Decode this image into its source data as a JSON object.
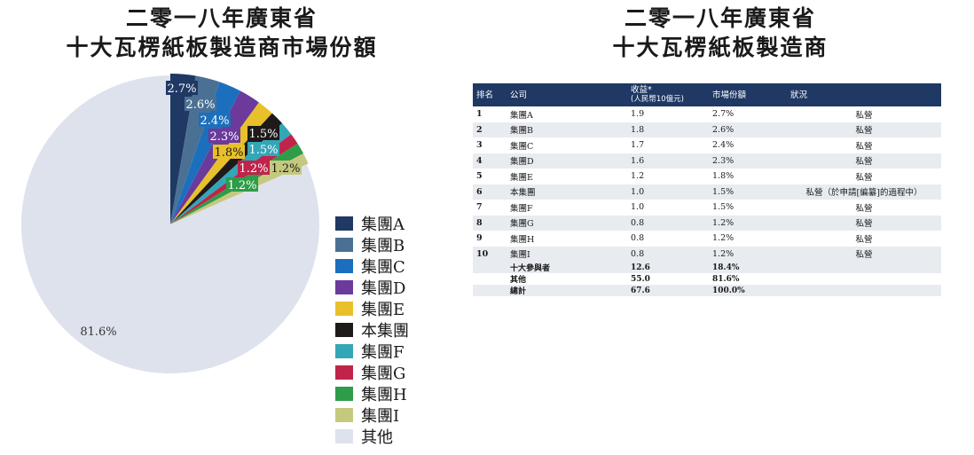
{
  "left_title": {
    "line1": "二零一八年廣東省",
    "line2": "十大瓦楞紙板製造商市場份額"
  },
  "right_title": {
    "line1": "二零一八年廣東省",
    "line2": "十大瓦楞紙板製造商"
  },
  "chart_data": [
    {
      "type": "pie",
      "title": "二零一八年廣東省十大瓦楞紙板製造商市場份額",
      "legend_position": "right",
      "slices": [
        {
          "label": "集團A",
          "value": 2.7,
          "value_label": "2.7%",
          "color": "#1f3864"
        },
        {
          "label": "集團B",
          "value": 2.6,
          "value_label": "2.6%",
          "color": "#4a7193"
        },
        {
          "label": "集團C",
          "value": 2.4,
          "value_label": "2.4%",
          "color": "#1c6fbc"
        },
        {
          "label": "集團D",
          "value": 2.3,
          "value_label": "2.3%",
          "color": "#6b3a9a"
        },
        {
          "label": "集團E",
          "value": 1.8,
          "value_label": "1.8%",
          "color": "#e8c02a"
        },
        {
          "label": "本集團",
          "value": 1.5,
          "value_label": "1.5%",
          "color": "#1e1a1a"
        },
        {
          "label": "集團F",
          "value": 1.5,
          "value_label": "1.5%",
          "color": "#33a6b8"
        },
        {
          "label": "集團G",
          "value": 1.2,
          "value_label": "1.2%",
          "color": "#c0244a"
        },
        {
          "label": "集團H",
          "value": 1.2,
          "value_label": "1.2%",
          "color": "#2e9c48"
        },
        {
          "label": "集團I",
          "value": 1.2,
          "value_label": "1.2%",
          "color": "#c5c97e"
        },
        {
          "label": "其他",
          "value": 81.6,
          "value_label": "81.6%",
          "color": "#dde2ed"
        }
      ]
    },
    {
      "type": "table",
      "title": "二零一八年廣東省十大瓦楞紙板製造商",
      "columns": [
        "排名",
        "公司",
        "收益*\n(人民幣10億元)",
        "市場份額",
        "狀況"
      ],
      "rows": [
        [
          "1",
          "集團A",
          "1.9",
          "2.7%",
          "私營"
        ],
        [
          "2",
          "集團B",
          "1.8",
          "2.6%",
          "私營"
        ],
        [
          "3",
          "集團C",
          "1.7",
          "2.4%",
          "私營"
        ],
        [
          "4",
          "集團D",
          "1.6",
          "2.3%",
          "私營"
        ],
        [
          "5",
          "集團E",
          "1.2",
          "1.8%",
          "私營"
        ],
        [
          "6",
          "本集團",
          "1.0",
          "1.5%",
          "私營（於申請[編纂]的過程中）"
        ],
        [
          "7",
          "集團F",
          "1.0",
          "1.5%",
          "私營"
        ],
        [
          "8",
          "集團G",
          "0.8",
          "1.2%",
          "私營"
        ],
        [
          "9",
          "集團H",
          "0.8",
          "1.2%",
          "私營"
        ],
        [
          "10",
          "集團I",
          "0.8",
          "1.2%",
          "私營"
        ]
      ],
      "summary_rows": [
        [
          "",
          "十大參與者",
          "12.6",
          "18.4%",
          ""
        ],
        [
          "",
          "其他",
          "55.0",
          "81.6%",
          ""
        ],
        [
          "",
          "總計",
          "67.6",
          "100.0%",
          ""
        ]
      ]
    }
  ]
}
